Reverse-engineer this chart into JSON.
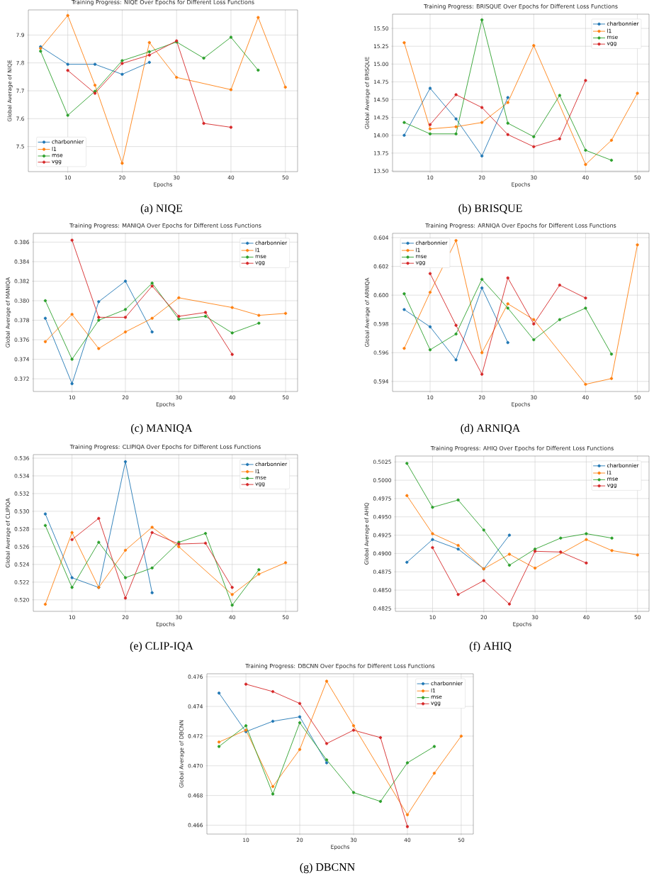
{
  "chart_data": [
    {
      "type": "line",
      "title": "Training Progress: NIQE Over Epochs for Different Loss Functions",
      "xlabel": "Epochs",
      "ylabel": "Global Average of NIQE",
      "annotations": [
        "(a) NIQE"
      ],
      "xlim": [
        2.75,
        52.25
      ],
      "xticks": [
        10,
        20,
        30,
        40,
        50
      ],
      "ylim": [
        7.41,
        7.99
      ],
      "yticks": [
        7.5,
        7.6,
        7.7,
        7.8,
        7.9
      ],
      "grid": true,
      "legend": "bottom left",
      "marker": "circle",
      "line_style": "solid",
      "series": [
        {
          "name": "charbonnier",
          "color": "#1f77b4",
          "x": [
            5,
            10,
            15,
            20,
            25
          ],
          "values": [
            7.858,
            7.795,
            7.795,
            7.759,
            7.802
          ]
        },
        {
          "name": "l1",
          "color": "#ff7f0e",
          "x": [
            5,
            10,
            15,
            20,
            25,
            30,
            40,
            45,
            50
          ],
          "values": [
            7.852,
            7.97,
            7.72,
            7.44,
            7.873,
            7.748,
            7.704,
            7.963,
            7.713
          ]
        },
        {
          "name": "mse",
          "color": "#2ca02c",
          "x": [
            5,
            10,
            15,
            20,
            25,
            30,
            35,
            40,
            45
          ],
          "values": [
            7.842,
            7.612,
            7.698,
            7.808,
            7.84,
            7.875,
            7.817,
            7.892,
            7.774
          ]
        },
        {
          "name": "vgg",
          "color": "#d62728",
          "x": [
            10,
            15,
            20,
            25,
            30,
            35,
            40
          ],
          "values": [
            7.773,
            7.691,
            7.798,
            7.828,
            7.879,
            7.583,
            7.569
          ]
        }
      ]
    },
    {
      "type": "line",
      "title": "Training Progress: BRISQUE Over Epochs for Different Loss Functions",
      "xlabel": "Epochs",
      "ylabel": "Global Average of BRISQUE",
      "annotations": [
        "(b) BRISQUE"
      ],
      "xlim": [
        2.75,
        52.25
      ],
      "xticks": [
        10,
        20,
        30,
        40,
        50
      ],
      "ylim": [
        13.49,
        15.7
      ],
      "yticks": [
        {
          "value": 13.5,
          "label": "13.50"
        },
        13.75,
        {
          "value": 14.0,
          "label": "14.00"
        },
        14.25,
        {
          "value": 14.5,
          "label": "14.50"
        },
        14.75,
        {
          "value": 15.0,
          "label": "15.00"
        },
        15.25,
        {
          "value": 15.5,
          "label": "15.50"
        }
      ],
      "grid": true,
      "legend": "top right",
      "marker": "circle",
      "line_style": "solid",
      "series": [
        {
          "name": "charbonnier",
          "color": "#1f77b4",
          "x": [
            5,
            10,
            15,
            20,
            25
          ],
          "values": [
            14.0,
            14.66,
            14.23,
            13.71,
            14.53
          ]
        },
        {
          "name": "l1",
          "color": "#ff7f0e",
          "x": [
            5,
            10,
            15,
            20,
            25,
            30,
            40,
            45,
            50
          ],
          "values": [
            15.3,
            14.09,
            14.12,
            14.18,
            14.46,
            15.26,
            13.59,
            13.93,
            14.59
          ]
        },
        {
          "name": "mse",
          "color": "#2ca02c",
          "x": [
            5,
            10,
            15,
            20,
            25,
            30,
            35,
            40,
            45
          ],
          "values": [
            14.18,
            14.02,
            14.02,
            15.62,
            14.17,
            13.98,
            14.56,
            13.79,
            13.65
          ]
        },
        {
          "name": "vgg",
          "color": "#d62728",
          "x": [
            10,
            15,
            20,
            25,
            30,
            35,
            40
          ],
          "values": [
            14.15,
            14.57,
            14.39,
            14.01,
            13.84,
            13.95,
            14.77
          ]
        }
      ]
    },
    {
      "type": "line",
      "title": "Training Progress: MANIQA Over Epochs for Different Loss Functions",
      "xlabel": "Epochs",
      "ylabel": "Global Average of MANIQA",
      "annotations": [
        "(c) MANIQA"
      ],
      "xlim": [
        2.75,
        52.25
      ],
      "xticks": [
        10,
        20,
        30,
        40,
        50
      ],
      "ylim": [
        0.3707,
        0.3869
      ],
      "yticks": [
        0.372,
        0.374,
        0.376,
        0.378,
        {
          "value": 0.38,
          "label": "0.380"
        },
        0.382,
        0.384,
        0.386
      ],
      "grid": true,
      "legend": "top right",
      "marker": "circle",
      "line_style": "solid",
      "series": [
        {
          "name": "charbonnier",
          "color": "#1f77b4",
          "x": [
            5,
            10,
            15,
            20,
            25
          ],
          "values": [
            0.3782,
            0.3715,
            0.3799,
            0.382,
            0.3768
          ]
        },
        {
          "name": "l1",
          "color": "#ff7f0e",
          "x": [
            5,
            10,
            15,
            20,
            25,
            30,
            40,
            45,
            50
          ],
          "values": [
            0.3758,
            0.3786,
            0.3751,
            0.3768,
            0.3782,
            0.3803,
            0.3793,
            0.3785,
            0.3787
          ]
        },
        {
          "name": "mse",
          "color": "#2ca02c",
          "x": [
            5,
            10,
            15,
            20,
            25,
            30,
            35,
            40,
            45
          ],
          "values": [
            0.38,
            0.374,
            0.378,
            0.3791,
            0.3818,
            0.3781,
            0.3784,
            0.3767,
            0.3777
          ]
        },
        {
          "name": "vgg",
          "color": "#d62728",
          "x": [
            10,
            15,
            20,
            25,
            30,
            35,
            40
          ],
          "values": [
            0.3862,
            0.3783,
            0.3783,
            0.3815,
            0.3784,
            0.3788,
            0.3745
          ]
        }
      ]
    },
    {
      "type": "line",
      "title": "Training Progress: ARNIQA Over Epochs for Different Loss Functions",
      "xlabel": "Epochs",
      "ylabel": "Global Average of ARNIQA",
      "annotations": [
        "(d) ARNIQA"
      ],
      "xlim": [
        2.75,
        52.25
      ],
      "xticks": [
        10,
        20,
        30,
        40,
        50
      ],
      "ylim": [
        0.5933,
        0.6043
      ],
      "yticks": [
        0.594,
        0.596,
        0.598,
        {
          "value": 0.6,
          "label": "0.600"
        },
        0.602,
        0.604
      ],
      "grid": true,
      "legend": "top left",
      "marker": "circle",
      "line_style": "solid",
      "series": [
        {
          "name": "charbonnier",
          "color": "#1f77b4",
          "x": [
            5,
            10,
            15,
            20,
            25
          ],
          "values": [
            0.599,
            0.5978,
            0.5955,
            0.6005,
            0.5967
          ]
        },
        {
          "name": "l1",
          "color": "#ff7f0e",
          "x": [
            5,
            10,
            15,
            20,
            25,
            30,
            40,
            45,
            50
          ],
          "values": [
            0.5963,
            0.6002,
            0.6038,
            0.596,
            0.5994,
            0.5983,
            0.5938,
            0.5942,
            0.6035
          ]
        },
        {
          "name": "mse",
          "color": "#2ca02c",
          "x": [
            5,
            10,
            15,
            20,
            25,
            30,
            35,
            40,
            45
          ],
          "values": [
            0.6001,
            0.5962,
            0.5973,
            0.6011,
            0.5991,
            0.5969,
            0.5983,
            0.5991,
            0.5959
          ]
        },
        {
          "name": "vgg",
          "color": "#d62728",
          "x": [
            10,
            15,
            20,
            25,
            30,
            35,
            40
          ],
          "values": [
            0.6015,
            0.5979,
            0.5945,
            0.6012,
            0.598,
            0.6007,
            0.5998
          ]
        }
      ]
    },
    {
      "type": "line",
      "title": "Training Progress: CLIPIQA Over Epochs for Different Loss Functions",
      "xlabel": "Epochs",
      "ylabel": "Global Average of CLIPIQA",
      "annotations": [
        "(e) CLIP-IQA"
      ],
      "xlim": [
        2.75,
        52.25
      ],
      "xticks": [
        10,
        20,
        30,
        40,
        50
      ],
      "ylim": [
        0.5187,
        0.5364
      ],
      "yticks": [
        {
          "value": 0.52,
          "label": "0.520"
        },
        0.522,
        0.524,
        0.526,
        0.528,
        {
          "value": 0.53,
          "label": "0.530"
        },
        0.532,
        0.534,
        0.536
      ],
      "grid": true,
      "legend": "top right",
      "marker": "circle",
      "line_style": "solid",
      "series": [
        {
          "name": "charbonnier",
          "color": "#1f77b4",
          "x": [
            5,
            10,
            15,
            20,
            25
          ],
          "values": [
            0.5297,
            0.5225,
            0.5214,
            0.5356,
            0.5208
          ]
        },
        {
          "name": "l1",
          "color": "#ff7f0e",
          "x": [
            5,
            10,
            15,
            20,
            25,
            30,
            40,
            45,
            50
          ],
          "values": [
            0.5195,
            0.5276,
            0.5214,
            0.5256,
            0.5282,
            0.526,
            0.5206,
            0.5229,
            0.5242
          ]
        },
        {
          "name": "mse",
          "color": "#2ca02c",
          "x": [
            5,
            10,
            15,
            20,
            25,
            30,
            35,
            40,
            45
          ],
          "values": [
            0.5284,
            0.5214,
            0.5265,
            0.5225,
            0.5236,
            0.5265,
            0.5275,
            0.5194,
            0.5234
          ]
        },
        {
          "name": "vgg",
          "color": "#d62728",
          "x": [
            10,
            15,
            20,
            25,
            30,
            35,
            40
          ],
          "values": [
            0.5268,
            0.5292,
            0.5202,
            0.5276,
            0.5263,
            0.5264,
            0.5214
          ]
        }
      ]
    },
    {
      "type": "line",
      "title": "Training Progress: AHIQ Over Epochs for Different Loss Functions",
      "xlabel": "Epochs",
      "ylabel": "Global Average of AHIQ",
      "annotations": [
        "(f) AHIQ"
      ],
      "xlim": [
        2.75,
        52.25
      ],
      "xticks": [
        10,
        20,
        30,
        40,
        50
      ],
      "ylim": [
        0.4821,
        0.5033
      ],
      "yticks": [
        0.4825,
        {
          "value": 0.485,
          "label": "0.4850"
        },
        0.4875,
        {
          "value": 0.49,
          "label": "0.4900"
        },
        0.4925,
        {
          "value": 0.495,
          "label": "0.4950"
        },
        0.4975,
        {
          "value": 0.5,
          "label": "0.5000"
        },
        0.5025
      ],
      "grid": true,
      "legend": "top right",
      "marker": "circle",
      "line_style": "solid",
      "series": [
        {
          "name": "charbonnier",
          "color": "#1f77b4",
          "x": [
            5,
            10,
            15,
            20,
            25
          ],
          "values": [
            0.4888,
            0.4919,
            0.4906,
            0.4879,
            0.4925
          ]
        },
        {
          "name": "l1",
          "color": "#ff7f0e",
          "x": [
            5,
            10,
            15,
            20,
            25,
            30,
            40,
            45,
            50
          ],
          "values": [
            0.4979,
            0.4927,
            0.4911,
            0.4879,
            0.4899,
            0.488,
            0.4919,
            0.4904,
            0.4898
          ]
        },
        {
          "name": "mse",
          "color": "#2ca02c",
          "x": [
            5,
            10,
            15,
            20,
            25,
            30,
            35,
            40,
            45
          ],
          "values": [
            0.5023,
            0.4963,
            0.4973,
            0.4932,
            0.4884,
            0.4906,
            0.4921,
            0.4927,
            0.4921
          ]
        },
        {
          "name": "vgg",
          "color": "#d62728",
          "x": [
            10,
            15,
            20,
            25,
            30,
            35,
            40
          ],
          "values": [
            0.4908,
            0.4844,
            0.4863,
            0.4831,
            0.4903,
            0.4902,
            0.4887
          ]
        }
      ]
    },
    {
      "type": "line",
      "title": "Training Progress: DBCNN Over Epochs for Different Loss Functions",
      "xlabel": "Epochs",
      "ylabel": "Global Average of DBCNN",
      "annotations": [
        "(g) DBCNN"
      ],
      "xlim": [
        2.75,
        52.25
      ],
      "xticks": [
        10,
        20,
        30,
        40,
        50
      ],
      "ylim": [
        0.4654,
        0.4762
      ],
      "yticks": [
        0.466,
        0.468,
        {
          "value": 0.47,
          "label": "0.470"
        },
        0.472,
        0.474,
        0.476
      ],
      "grid": true,
      "legend": "top right",
      "marker": "circle",
      "line_style": "solid",
      "series": [
        {
          "name": "charbonnier",
          "color": "#1f77b4",
          "x": [
            5,
            10,
            15,
            20,
            25
          ],
          "values": [
            0.4749,
            0.4723,
            0.473,
            0.4733,
            0.4702
          ]
        },
        {
          "name": "l1",
          "color": "#ff7f0e",
          "x": [
            5,
            10,
            15,
            20,
            25,
            30,
            40,
            45,
            50
          ],
          "values": [
            0.4716,
            0.4724,
            0.4686,
            0.4711,
            0.4757,
            0.4727,
            0.4667,
            0.4695,
            0.472
          ]
        },
        {
          "name": "mse",
          "color": "#2ca02c",
          "x": [
            5,
            10,
            15,
            20,
            25,
            30,
            35,
            40,
            45
          ],
          "values": [
            0.4713,
            0.4727,
            0.4681,
            0.4729,
            0.4704,
            0.4682,
            0.4676,
            0.4702,
            0.4713
          ]
        },
        {
          "name": "vgg",
          "color": "#d62728",
          "x": [
            10,
            15,
            20,
            25,
            30,
            35,
            40
          ],
          "values": [
            0.4755,
            0.475,
            0.4742,
            0.4715,
            0.4724,
            0.4719,
            0.4659
          ]
        }
      ]
    }
  ]
}
